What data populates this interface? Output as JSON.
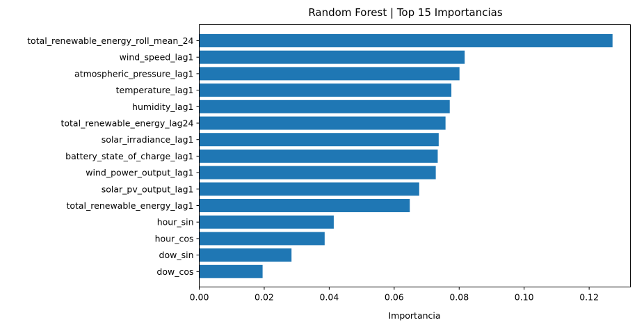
{
  "chart_data": {
    "type": "bar",
    "orientation": "horizontal",
    "title": "Random Forest | Top 15 Importancias",
    "xlabel": "Importancia",
    "ylabel": "",
    "xlim": [
      0,
      0.1327
    ],
    "xticks": [
      "0.00",
      "0.02",
      "0.04",
      "0.06",
      "0.08",
      "0.10",
      "0.12"
    ],
    "grid": false,
    "bar_color": "#1f77b4",
    "categories": [
      "total_renewable_energy_roll_mean_24",
      "wind_speed_lag1",
      "atmospheric_pressure_lag1",
      "temperature_lag1",
      "humidity_lag1",
      "total_renewable_energy_lag24",
      "solar_irradiance_lag1",
      "battery_state_of_charge_lag1",
      "wind_power_output_lag1",
      "solar_pv_output_lag1",
      "total_renewable_energy_lag1",
      "hour_sin",
      "hour_cos",
      "dow_sin",
      "dow_cos"
    ],
    "values": [
      0.1272,
      0.0817,
      0.0801,
      0.0776,
      0.0771,
      0.0758,
      0.0737,
      0.0734,
      0.0728,
      0.0677,
      0.0648,
      0.0414,
      0.0386,
      0.0284,
      0.0195
    ]
  }
}
